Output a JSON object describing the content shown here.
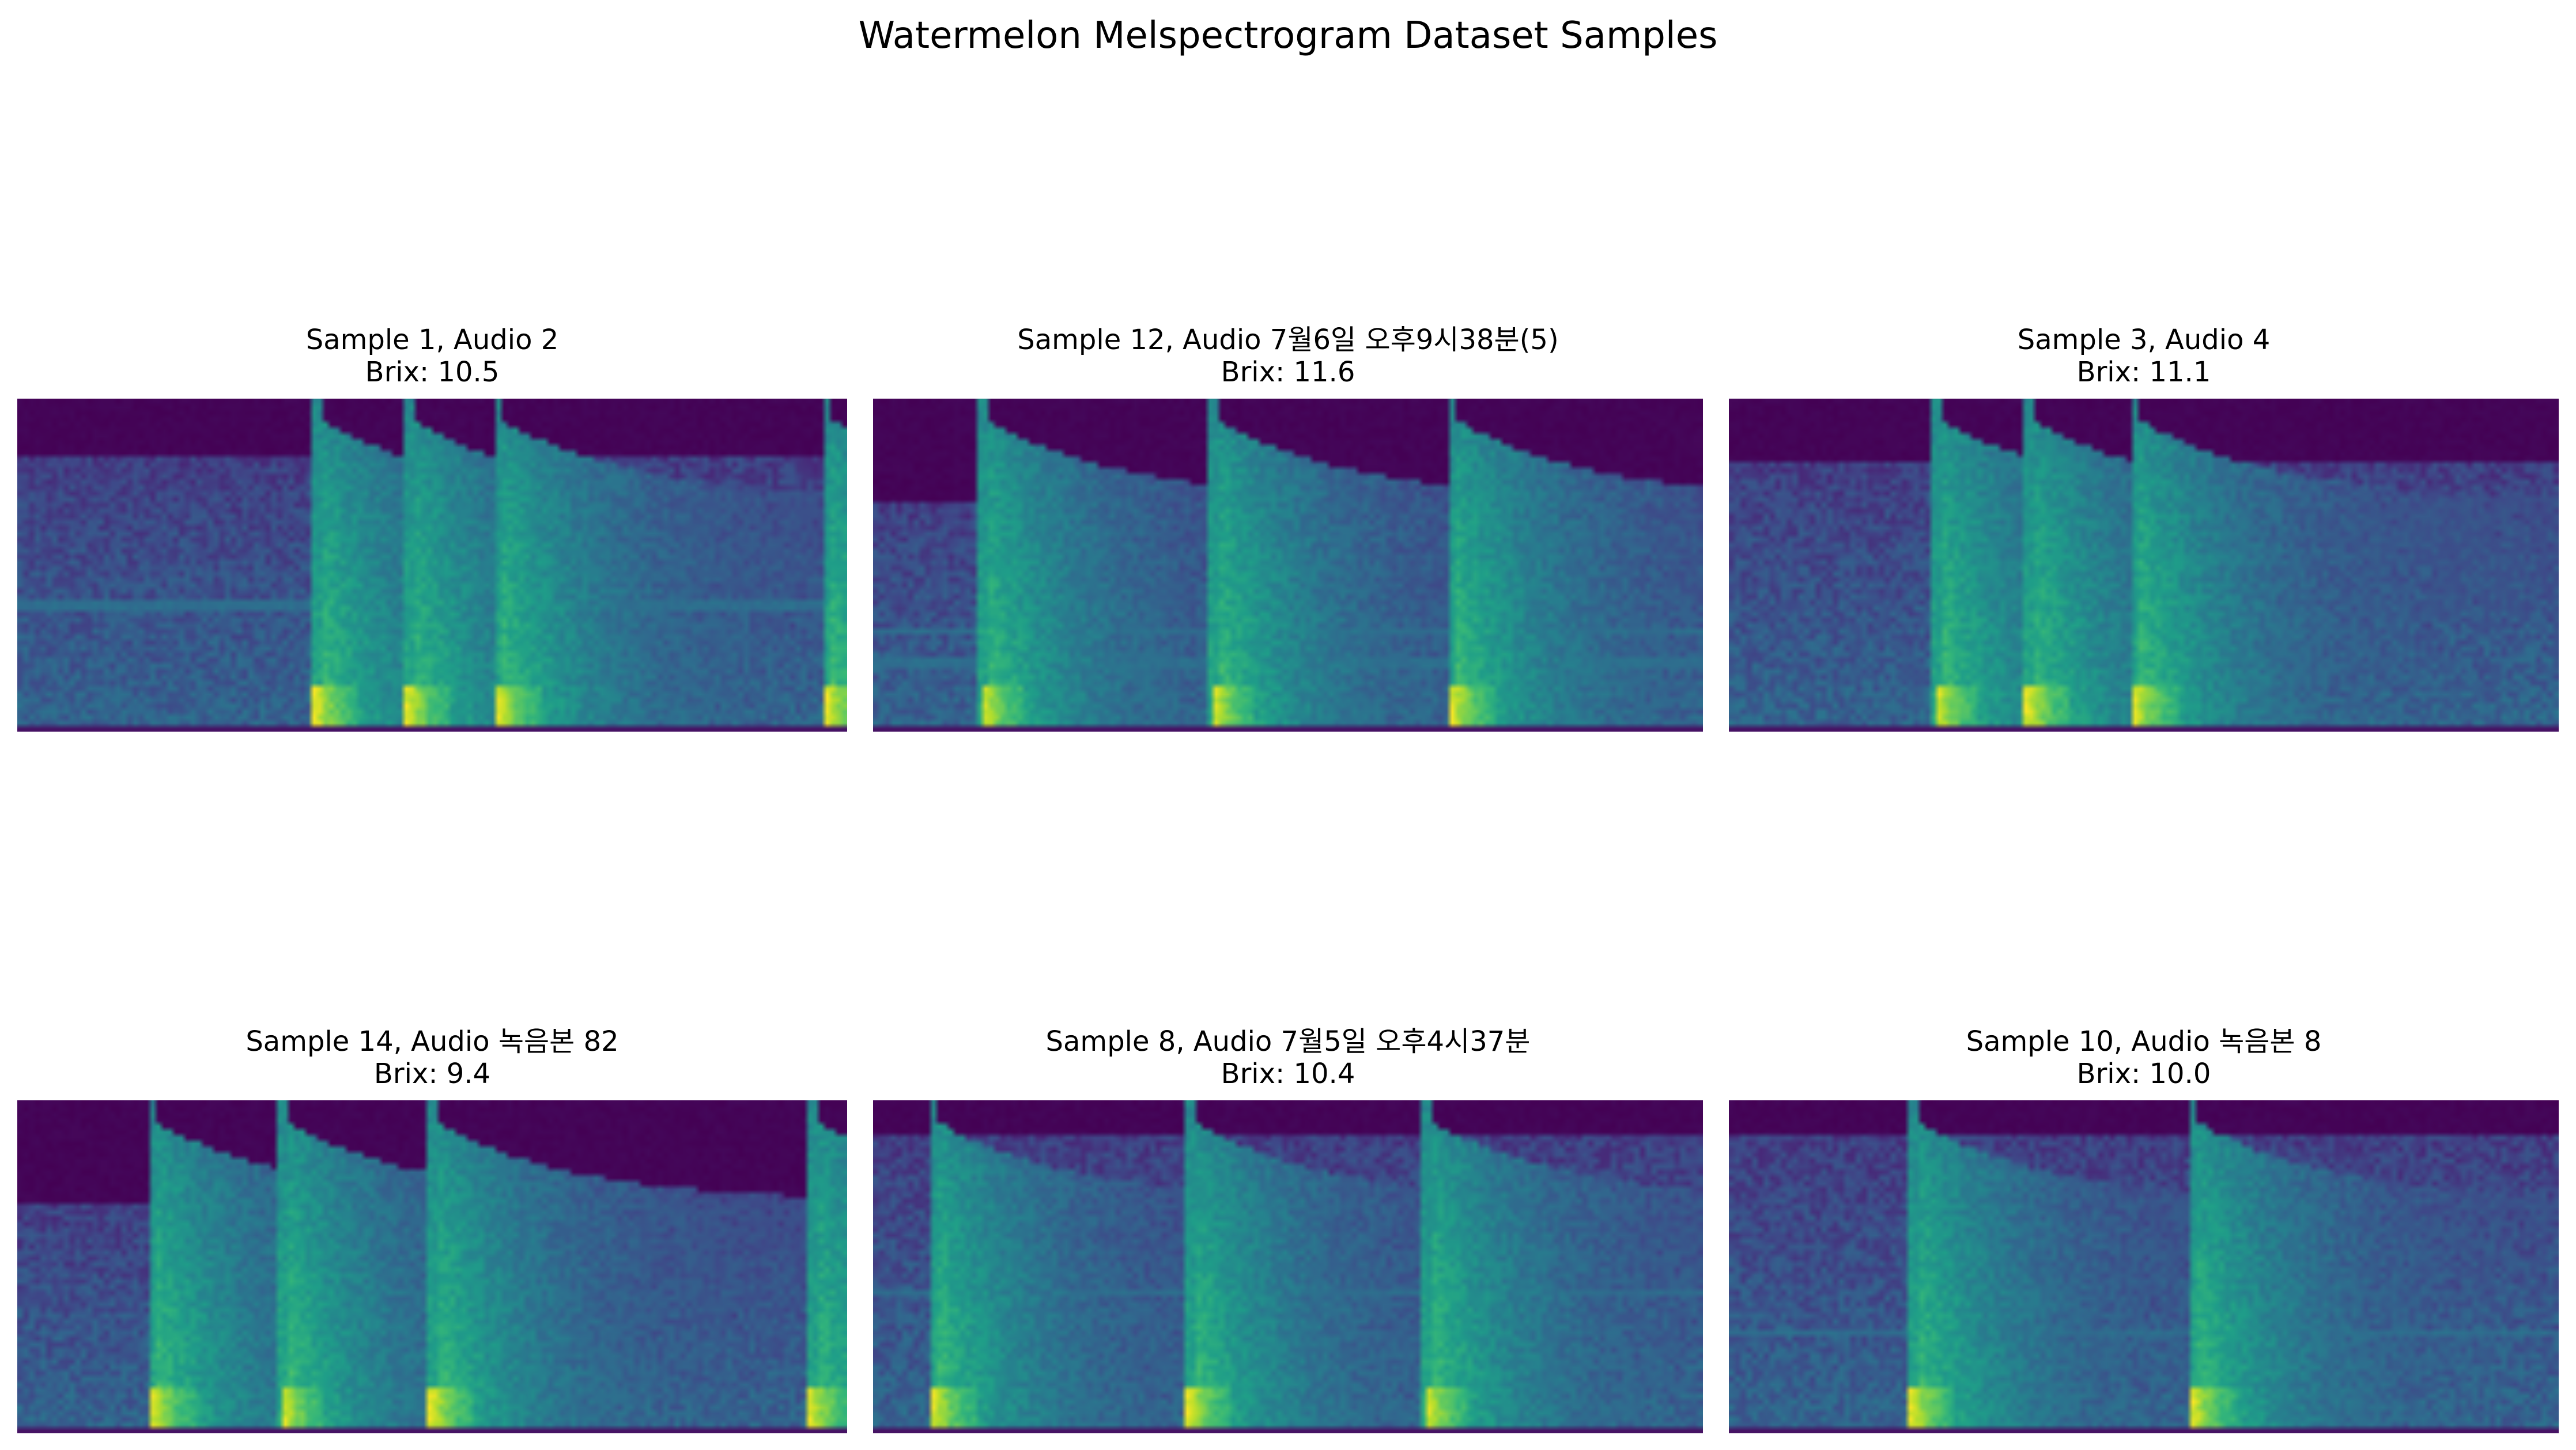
{
  "figure": {
    "title": "Watermelon Melspectrogram Dataset Samples"
  },
  "chart_data": [
    {
      "type": "heatmap",
      "title": "Sample 1, Audio 2",
      "subtitle": "Brix: 10.5",
      "colormap": "viridis",
      "axes": "off",
      "onsets": [
        0.36,
        0.47,
        0.58,
        0.98
      ],
      "noise_floor_top": 0.17,
      "sustained_bands": [
        0.62
      ]
    },
    {
      "type": "heatmap",
      "title": "Sample 12, Audio 7월6일 오후9시38분(5)",
      "subtitle": "Brix: 11.6",
      "colormap": "viridis",
      "axes": "off",
      "onsets": [
        0.13,
        0.41,
        0.7
      ],
      "noise_floor_top": 0.3,
      "sustained_bands": [
        0.7,
        0.8
      ]
    },
    {
      "type": "heatmap",
      "title": "Sample 3, Audio 4",
      "subtitle": "Brix: 11.1",
      "colormap": "viridis",
      "axes": "off",
      "onsets": [
        0.25,
        0.36,
        0.49
      ],
      "noise_floor_top": 0.18,
      "sustained_bands": []
    },
    {
      "type": "heatmap",
      "title": "Sample 14, Audio 녹음본 82",
      "subtitle": "Brix: 9.4",
      "colormap": "viridis",
      "axes": "off",
      "onsets": [
        0.16,
        0.32,
        0.5,
        0.96
      ],
      "noise_floor_top": 0.3,
      "sustained_bands": []
    },
    {
      "type": "heatmap",
      "title": "Sample 8, Audio 7월5일 오후4시37분",
      "subtitle": "Brix: 10.4",
      "colormap": "viridis",
      "axes": "off",
      "onsets": [
        0.07,
        0.38,
        0.67
      ],
      "noise_floor_top": 0.1,
      "sustained_bands": [
        0.58
      ]
    },
    {
      "type": "heatmap",
      "title": "Sample 10, Audio 녹음본 8",
      "subtitle": "Brix: 10.0",
      "colormap": "viridis",
      "axes": "off",
      "onsets": [
        0.22,
        0.56
      ],
      "noise_floor_top": 0.1,
      "sustained_bands": [
        0.7
      ]
    }
  ]
}
